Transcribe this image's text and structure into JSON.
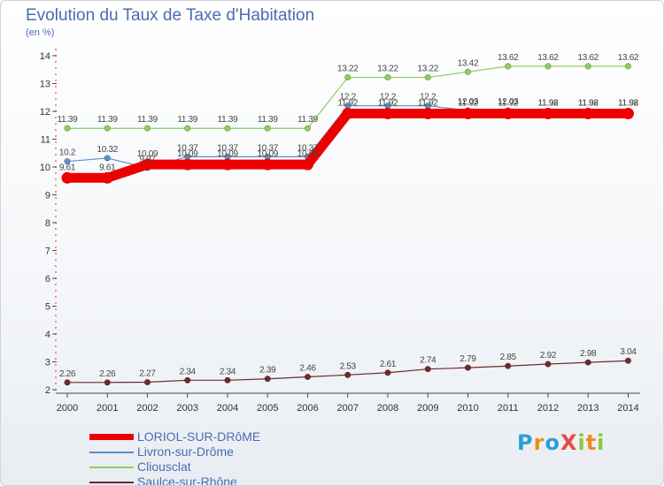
{
  "chart_data": {
    "type": "line",
    "title": "Evolution du Taux de Taxe d'Habitation",
    "unit_label": "(en %)",
    "xlabel": "",
    "ylabel": "",
    "categories": [
      "2000",
      "2001",
      "2002",
      "2003",
      "2004",
      "2005",
      "2006",
      "2007",
      "2008",
      "2009",
      "2010",
      "2011",
      "2012",
      "2013",
      "2014"
    ],
    "ylim": [
      2,
      14
    ],
    "yticks": [
      2,
      3,
      4,
      5,
      6,
      7,
      8,
      9,
      10,
      11,
      12,
      13,
      14
    ],
    "ytick_labels": [
      "2",
      "3",
      "4",
      "5",
      "6",
      "7",
      "8",
      "9",
      "10",
      "11",
      "12",
      "13",
      "14"
    ],
    "series": [
      {
        "name": "Livron-sur-Drôme",
        "color": "#5a8fc8",
        "values": [
          10.2,
          10.32,
          9.97,
          10.37,
          10.37,
          10.37,
          10.37,
          12.2,
          12.2,
          12.2,
          12.03,
          12.03,
          11.98,
          11.98,
          11.98
        ],
        "labels": [
          "10.2",
          "10.32",
          "9.97",
          "10.37",
          "10.37",
          "10.37",
          "10.37",
          "12.2",
          "12.2",
          "12.2",
          "12.03",
          "12.03",
          "11.98",
          "11.98",
          "11.98"
        ]
      },
      {
        "name": "Cliousclat",
        "color": "#8dd05a",
        "values": [
          11.39,
          11.39,
          11.39,
          11.39,
          11.39,
          11.39,
          11.39,
          13.22,
          13.22,
          13.22,
          13.42,
          13.62,
          13.62,
          13.62,
          13.62
        ],
        "labels": [
          "11.39",
          "11.39",
          "11.39",
          "11.39",
          "11.39",
          "11.39",
          "11.39",
          "13.22",
          "13.22",
          "13.22",
          "13.42",
          "13.62",
          "13.62",
          "13.62",
          "13.62"
        ]
      },
      {
        "name": "Saulce-sur-Rhône",
        "color": "#6e2a2a",
        "values": [
          2.26,
          2.26,
          2.27,
          2.34,
          2.34,
          2.39,
          2.46,
          2.53,
          2.61,
          2.74,
          2.79,
          2.85,
          2.92,
          2.98,
          3.04
        ],
        "labels": [
          "2.26",
          "2.26",
          "2.27",
          "2.34",
          "2.34",
          "2.39",
          "2.46",
          "2.53",
          "2.61",
          "2.74",
          "2.79",
          "2.85",
          "2.92",
          "2.98",
          "3.04"
        ]
      },
      {
        "name": "LORIOL-SUR-DRôME",
        "color": "#ee0000",
        "highlight": true,
        "values": [
          9.61,
          9.61,
          10.09,
          10.09,
          10.09,
          10.09,
          10.09,
          11.92,
          11.92,
          11.92,
          11.92,
          11.92,
          11.92,
          11.92,
          11.92
        ],
        "labels": [
          "9.61",
          "9.61",
          "10.09",
          "10.09",
          "10.09",
          "10.09",
          "10.09",
          "11.92",
          "11.92",
          "11.92",
          "11.92",
          "11.92",
          "11.92",
          "11.92",
          "11.92"
        ]
      }
    ],
    "legend_order": [
      "LORIOL-SUR-DRôME",
      "Livron-sur-Drôme",
      "Cliousclat",
      "Saulce-sur-Rhône"
    ],
    "legend_position": "bottom-left",
    "grid": false
  },
  "legend": {
    "items": [
      {
        "label": "LORIOL-SUR-DRôME",
        "color": "#ee0000"
      },
      {
        "label": "Livron-sur-Drôme",
        "color": "#5a8fc8"
      },
      {
        "label": "Cliousclat",
        "color": "#8dd05a"
      },
      {
        "label": "Saulce-sur-Rhône",
        "color": "#6e2a2a"
      }
    ]
  },
  "logo": {
    "text": "ProXiti",
    "letters": [
      "P",
      "r",
      "o",
      "X",
      "i",
      "t",
      "i"
    ]
  }
}
